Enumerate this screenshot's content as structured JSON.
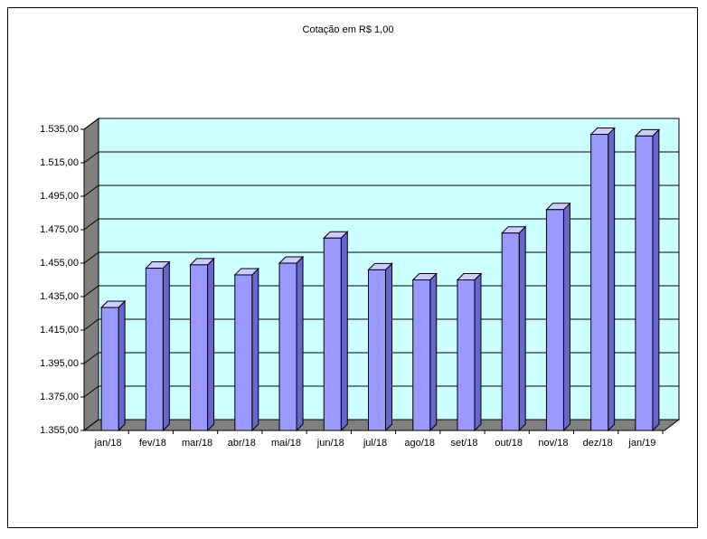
{
  "chart_data": {
    "type": "bar3d",
    "title": "Cotação em R$ 1,00",
    "categories": [
      "jan/18",
      "fev/18",
      "mar/18",
      "abr/18",
      "mai/18",
      "jun/18",
      "jul/18",
      "ago/18",
      "set/18",
      "out/18",
      "nov/18",
      "dez/18",
      "jan/19"
    ],
    "values": [
      1428.5,
      1452,
      1454,
      1448,
      1455,
      1470,
      1451,
      1445,
      1445,
      1473,
      1487,
      1532,
      1531
    ],
    "color": "#9999ff",
    "ylim": [
      1355,
      1535
    ],
    "yticks": [
      {
        "value": 1355,
        "label": "1.355,00"
      },
      {
        "value": 1375,
        "label": "1.375,00"
      },
      {
        "value": 1395,
        "label": "1.395,00"
      },
      {
        "value": 1415,
        "label": "1.415,00"
      },
      {
        "value": 1435,
        "label": "1.435,00"
      },
      {
        "value": 1455,
        "label": "1.455,00"
      },
      {
        "value": 1475,
        "label": "1.475,00"
      },
      {
        "value": 1495,
        "label": "1.495,00"
      },
      {
        "value": 1515,
        "label": "1.515,00"
      },
      {
        "value": 1535,
        "label": "1.535,00"
      }
    ],
    "grid": true
  }
}
